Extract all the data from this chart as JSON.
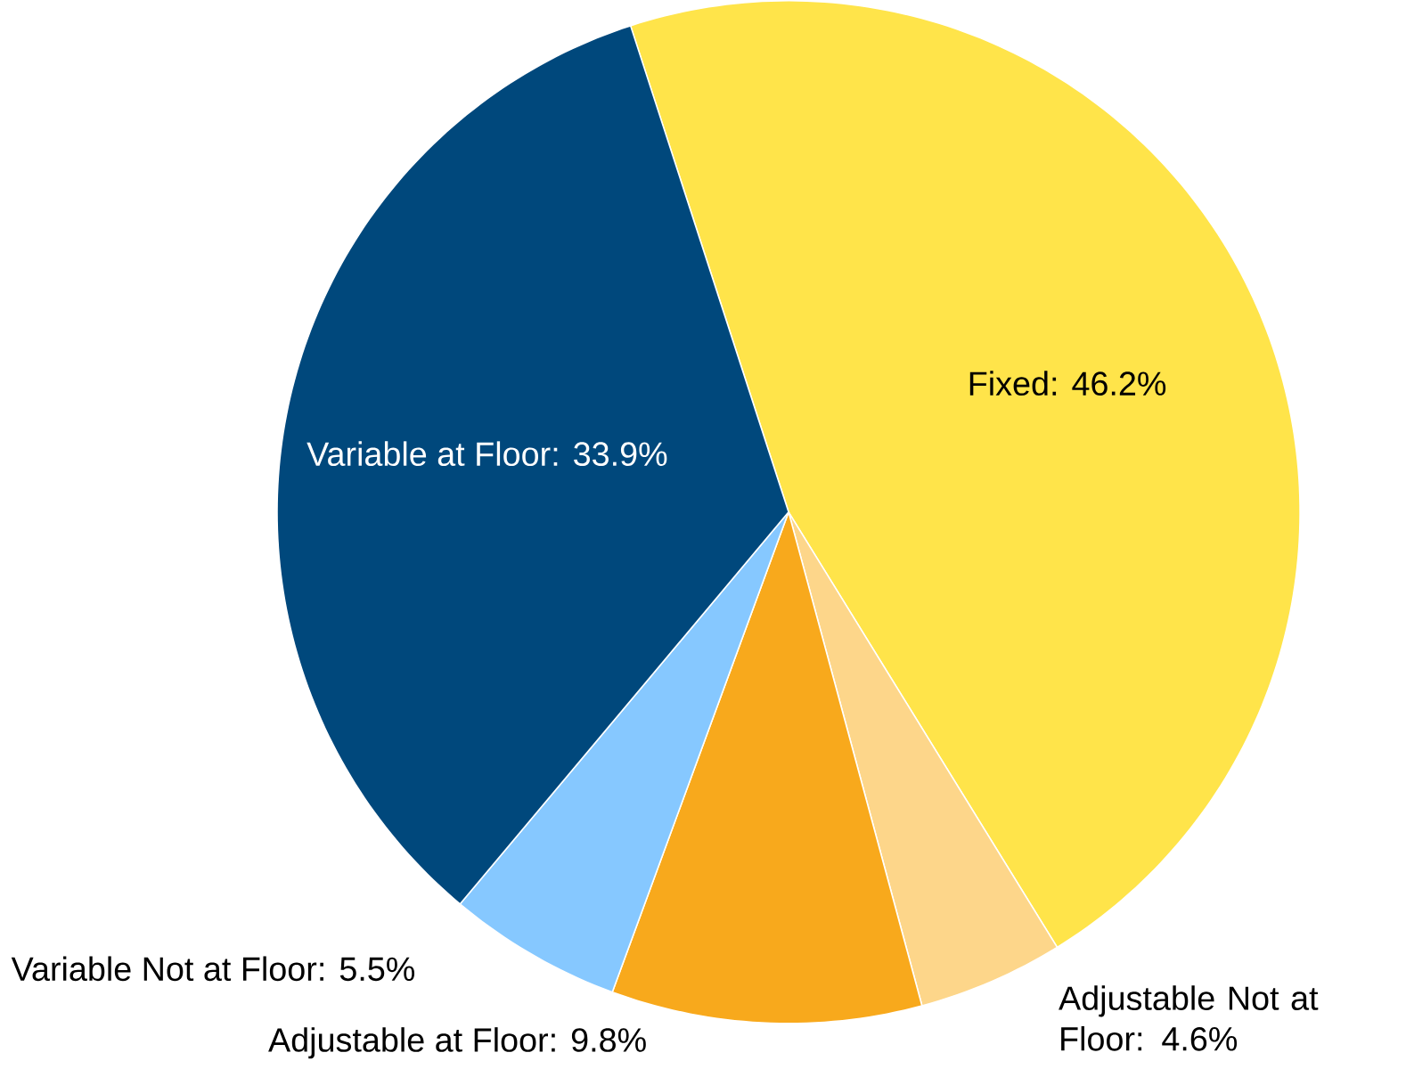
{
  "chart_data": {
    "type": "pie",
    "categories": [
      "Fixed",
      "Adjustable Not at Floor",
      "Adjustable at Floor",
      "Variable Not at Floor",
      "Variable at Floor"
    ],
    "values": [
      46.2,
      4.6,
      9.8,
      5.5,
      33.9
    ],
    "value_labels": [
      ": 46.2%",
      ": 4.6%",
      ": 9.8%",
      ": 5.5%",
      ": 33.9%"
    ],
    "colors": [
      "#ffe44a",
      "#fdd68a",
      "#f8a91c",
      "#86c8ff",
      "#00487c"
    ]
  }
}
